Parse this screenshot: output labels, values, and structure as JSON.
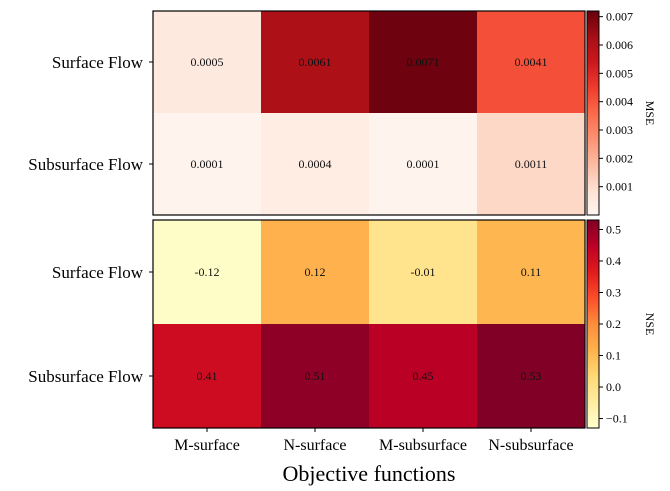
{
  "chart_data": [
    {
      "type": "heatmap",
      "metric": "MSE",
      "rows": [
        "Surface Flow",
        "Subsurface Flow"
      ],
      "columns": [
        "M-surface",
        "N-surface",
        "M-subsurface",
        "N-subsurface"
      ],
      "values": [
        [
          0.0005,
          0.0061,
          0.0071,
          0.0041
        ],
        [
          0.0001,
          0.0004,
          0.0001,
          0.0011
        ]
      ],
      "cell_labels": [
        [
          "0.0005",
          "0.0061",
          "0.0071",
          "0.0041"
        ],
        [
          "0.0001",
          "0.0004",
          "0.0001",
          "0.0011"
        ]
      ],
      "colorbar": {
        "label": "MSE",
        "range": [
          0,
          0.0072
        ],
        "ticks": [
          0.001,
          0.002,
          0.003,
          0.004,
          0.005,
          0.006,
          0.007
        ],
        "tick_labels": [
          "0.001",
          "0.002",
          "0.003",
          "0.004",
          "0.005",
          "0.006",
          "0.007"
        ],
        "colormap": "Reds"
      }
    },
    {
      "type": "heatmap",
      "metric": "NSE",
      "rows": [
        "Surface Flow",
        "Subsurface Flow"
      ],
      "columns": [
        "M-surface",
        "N-surface",
        "M-subsurface",
        "N-subsurface"
      ],
      "values": [
        [
          -0.12,
          0.12,
          -0.01,
          0.11
        ],
        [
          0.41,
          0.51,
          0.45,
          0.53
        ]
      ],
      "cell_labels": [
        [
          "-0.12",
          "0.12",
          "-0.01",
          "0.11"
        ],
        [
          "0.41",
          "0.51",
          "0.45",
          "0.53"
        ]
      ],
      "colorbar": {
        "label": "NSE",
        "range": [
          -0.13,
          0.53
        ],
        "ticks": [
          -0.1,
          0.0,
          0.1,
          0.2,
          0.3,
          0.4,
          0.5
        ],
        "tick_labels": [
          "−0.1",
          "0.0",
          "0.1",
          "0.2",
          "0.3",
          "0.4",
          "0.5"
        ],
        "colormap": "YlOrRd"
      }
    }
  ],
  "xlabel": "Objective functions"
}
